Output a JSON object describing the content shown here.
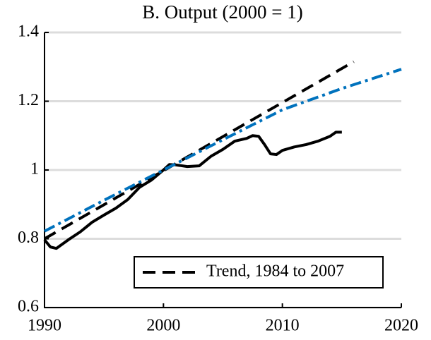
{
  "chart_data": {
    "type": "line",
    "title": "B. Output (2000 = 1)",
    "xlim": [
      1990,
      2020
    ],
    "xticks": [
      1990,
      2000,
      2010,
      2020
    ],
    "ylim": [
      0.6,
      1.4
    ],
    "yticks": [
      0.6,
      0.8,
      1,
      1.2,
      1.4
    ],
    "grid": true,
    "legend": "lower right",
    "series": [
      {
        "color": "#000000",
        "style": "solid",
        "x": [
          1990,
          1990.5,
          1991,
          1992,
          1993,
          1994,
          1995,
          1996,
          1997,
          1998,
          1999,
          2000,
          2000.5,
          2001,
          2002,
          2003,
          2004,
          2005,
          2006,
          2007,
          2007.5,
          2008,
          2008.5,
          2009,
          2009.5,
          2010,
          2011,
          2012,
          2013,
          2014,
          2014.5,
          2015
        ],
        "values": [
          0.797,
          0.776,
          0.772,
          0.797,
          0.82,
          0.848,
          0.869,
          0.889,
          0.914,
          0.95,
          0.971,
          1.0,
          1.016,
          1.015,
          1.01,
          1.012,
          1.04,
          1.06,
          1.084,
          1.092,
          1.1,
          1.098,
          1.074,
          1.047,
          1.045,
          1.057,
          1.067,
          1.074,
          1.084,
          1.098,
          1.11,
          1.11
        ]
      },
      {
        "name": "Trend, 1984 to 2007",
        "color": "#000000",
        "style": "dashed",
        "x": [
          1990,
          2016
        ],
        "values": [
          0.8,
          1.315
        ]
      },
      {
        "color": "#0072bd",
        "style": "dashdot",
        "x": [
          1990,
          1995,
          2000,
          2005,
          2010,
          2015,
          2020
        ],
        "values": [
          0.822,
          0.912,
          1.0,
          1.088,
          1.175,
          1.237,
          1.293
        ]
      }
    ]
  }
}
